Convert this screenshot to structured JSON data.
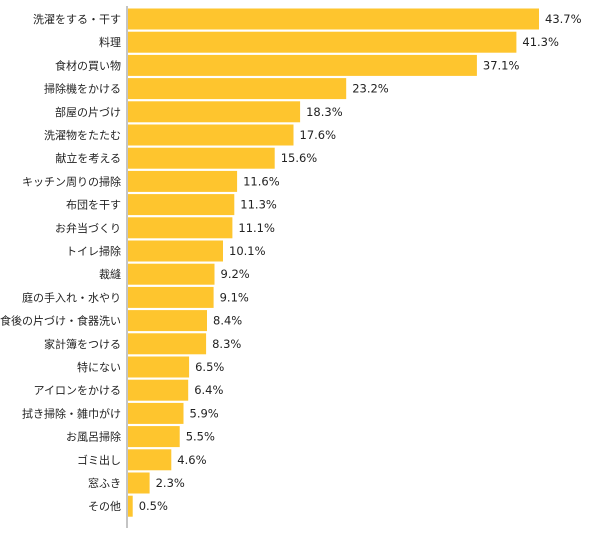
{
  "chart_data": {
    "type": "bar",
    "orientation": "horizontal",
    "categories": [
      "洗濯をする・干す",
      "料理",
      "食材の買い物",
      "掃除機をかける",
      "部屋の片づけ",
      "洗濯物をたたむ",
      "献立を考える",
      "キッチン周りの掃除",
      "布団を干す",
      "お弁当づくり",
      "トイレ掃除",
      "裁縫",
      "庭の手入れ・水やり",
      "食後の片づけ・食器洗い",
      "家計簿をつける",
      "特にない",
      "アイロンをかける",
      "拭き掃除・雑巾がけ",
      "お風呂掃除",
      "ゴミ出し",
      "窓ふき",
      "その他"
    ],
    "values": [
      43.7,
      41.3,
      37.1,
      23.2,
      18.3,
      17.6,
      15.6,
      11.6,
      11.3,
      11.1,
      10.1,
      9.2,
      9.1,
      8.4,
      8.3,
      6.5,
      6.4,
      5.9,
      5.5,
      4.6,
      2.3,
      0.5
    ],
    "value_labels": [
      "43.7%",
      "41.3%",
      "37.1%",
      "23.2%",
      "18.3%",
      "17.6%",
      "15.6%",
      "11.6%",
      "11.3%",
      "11.1%",
      "10.1%",
      "9.2%",
      "9.1%",
      "8.4%",
      "8.3%",
      "6.5%",
      "6.4%",
      "5.9%",
      "5.5%",
      "4.6%",
      "2.3%",
      "0.5%"
    ],
    "unit": "%",
    "xlim": [
      0,
      43.7
    ],
    "bar_color": "#FEC52E",
    "axis_color": "#888888",
    "grid": false,
    "legend": false
  }
}
